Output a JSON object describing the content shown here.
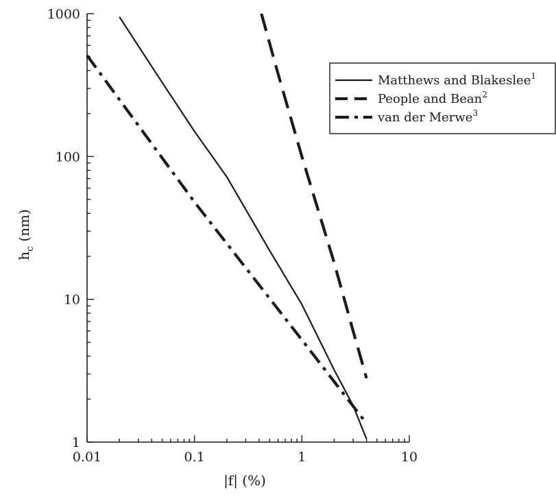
{
  "chart_data": {
    "type": "line",
    "title": "",
    "xlabel": "|f| (%)",
    "ylabel_main": "h",
    "ylabel_sub": "c",
    "ylabel_unit": "(nm)",
    "x_scale": "log",
    "y_scale": "log",
    "xlim": [
      0.01,
      10
    ],
    "ylim": [
      1,
      1000
    ],
    "x_ticks": [
      {
        "value": 0.01,
        "label": "0.01"
      },
      {
        "value": 0.1,
        "label": "0.1"
      },
      {
        "value": 1,
        "label": "1"
      },
      {
        "value": 10,
        "label": "10"
      }
    ],
    "y_ticks": [
      {
        "value": 1,
        "label": "1"
      },
      {
        "value": 10,
        "label": "10"
      },
      {
        "value": 100,
        "label": "100"
      },
      {
        "value": 1000,
        "label": "1000"
      }
    ],
    "grid": false,
    "legend_position": "top-right",
    "series": [
      {
        "name": "Matthews and Blakeslee",
        "superscript": "1",
        "style": "solid",
        "color": "#1a1a1a",
        "points": [
          [
            0.02,
            950
          ],
          [
            0.05,
            330
          ],
          [
            0.1,
            150
          ],
          [
            0.2,
            72
          ],
          [
            0.5,
            22
          ],
          [
            1.0,
            9.2
          ],
          [
            2.0,
            3.2
          ],
          [
            3.0,
            1.8
          ],
          [
            4.0,
            1.05
          ]
        ]
      },
      {
        "name": "People and Bean",
        "superscript": "2",
        "style": "dashed",
        "color": "#1a1a1a",
        "points": [
          [
            0.42,
            1000
          ],
          [
            0.6,
            380
          ],
          [
            1.0,
            100
          ],
          [
            2.0,
            18
          ],
          [
            3.0,
            6
          ],
          [
            4.0,
            2.8
          ]
        ]
      },
      {
        "name": "van der Merwe",
        "superscript": "3",
        "style": "dash-dot",
        "color": "#1a1a1a",
        "points": [
          [
            0.01,
            510
          ],
          [
            0.1,
            48
          ],
          [
            1.0,
            5.2
          ],
          [
            4.0,
            1.35
          ]
        ]
      }
    ]
  }
}
